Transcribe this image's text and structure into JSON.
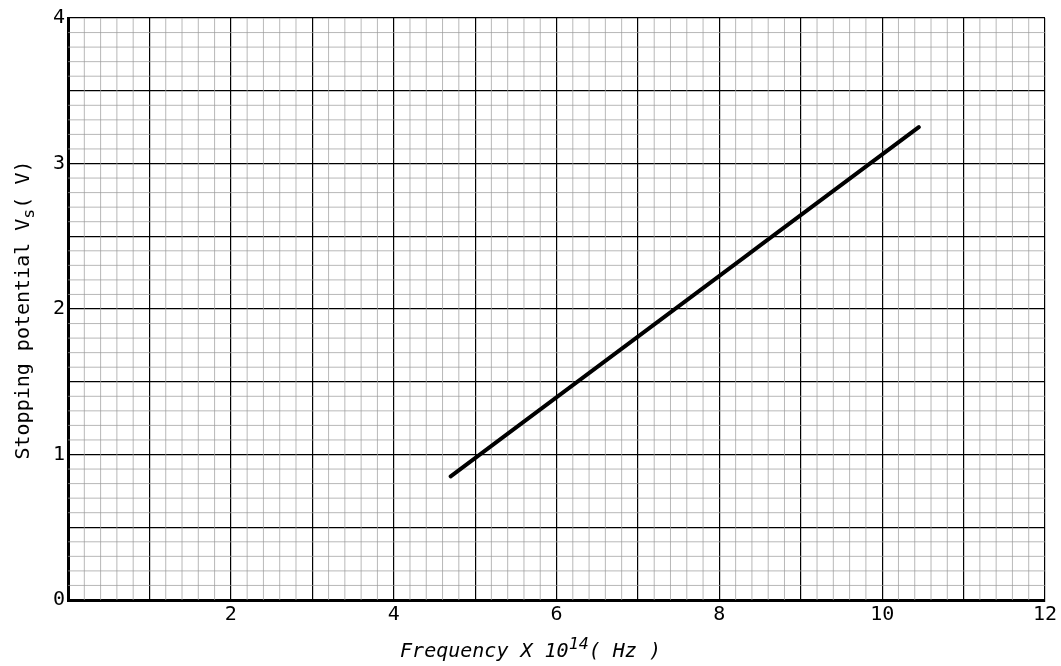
{
  "chart_data": {
    "type": "line",
    "xlabel": "Frequency X 10$^{14}$( Hz )",
    "ylabel": "Stopping potential V$_{s}$( V)",
    "series": [
      {
        "color": "#000000",
        "x": [
          4.7,
          10.45
        ],
        "values": [
          0.85,
          3.25
        ]
      }
    ],
    "xlim": [
      0,
      12
    ],
    "xticks": [
      {
        "value": 0,
        "label": null
      },
      {
        "value": 1,
        "label": null
      },
      2,
      {
        "value": 3,
        "label": null
      },
      4,
      {
        "value": 5,
        "label": null
      },
      6,
      {
        "value": 7,
        "label": null
      },
      8,
      {
        "value": 9,
        "label": null
      },
      10,
      {
        "value": 11,
        "label": null
      },
      12
    ],
    "ylim": [
      0,
      4
    ],
    "yticks": [
      0,
      {
        "value": 0.5,
        "label": null
      },
      1,
      {
        "value": 1.5,
        "label": null
      },
      2,
      {
        "value": 2.5,
        "label": null
      },
      3,
      {
        "value": 3.5,
        "label": null
      },
      4
    ],
    "grid": true,
    "legend": false,
    "marker": "none",
    "line_style": "solid"
  }
}
